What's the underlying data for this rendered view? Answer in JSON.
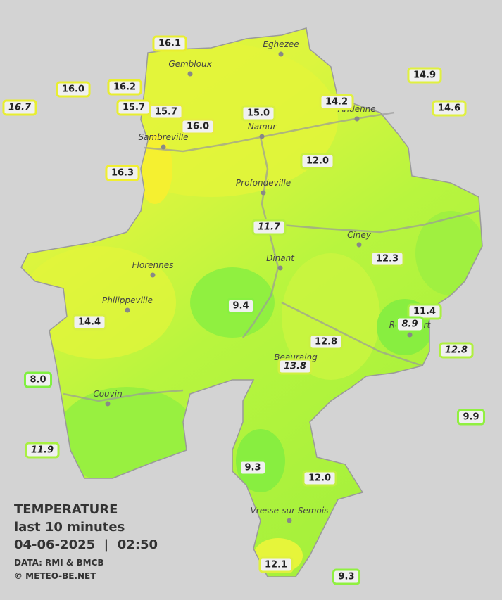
{
  "legend": {
    "title": "TEMPERATURE",
    "subtitle": "last 10 minutes",
    "datetime": "04-06-2025  |  02:50",
    "source": "DATA: RMI & BMCB",
    "copyright": "© METEO-BE.NET"
  },
  "cities": [
    "Eghezee",
    "Gembloux",
    "Andenne",
    "Namur",
    "Sambreville",
    "Profondeville",
    "Ciney",
    "Dinant",
    "Florennes",
    "Philippeville",
    "Rochefort",
    "Beauraing",
    "Couvin",
    "Vresse-sur-Semois"
  ],
  "stations": [
    {
      "label": "16.1",
      "border": "#e8ee30",
      "italic": false
    },
    {
      "label": "16.0",
      "border": "#e8ee30",
      "italic": false
    },
    {
      "label": "16.2",
      "border": "#e8ee30",
      "italic": false
    },
    {
      "label": "16.7",
      "border": "#e8ee30",
      "italic": true
    },
    {
      "label": "15.7",
      "border": "#e8ee30",
      "italic": false
    },
    {
      "label": "15.7",
      "border": "#e6ee40",
      "italic": false
    },
    {
      "label": "16.0",
      "border": "#e6ee40",
      "italic": false
    },
    {
      "label": "15.0",
      "border": "#d8f040",
      "italic": false
    },
    {
      "label": "14.2",
      "border": "#e0f040",
      "italic": false
    },
    {
      "label": "14.9",
      "border": "#e0f040",
      "italic": false
    },
    {
      "label": "14.6",
      "border": "#e0f040",
      "italic": false
    },
    {
      "label": "16.3",
      "border": "#f0ee30",
      "italic": false
    },
    {
      "label": "12.0",
      "border": "#c8f040",
      "italic": false
    },
    {
      "label": "11.7",
      "border": "#b8f040",
      "italic": true
    },
    {
      "label": "12.3",
      "border": "#c0f040",
      "italic": false
    },
    {
      "label": "9.4",
      "border": "#88f040",
      "italic": false
    },
    {
      "label": "11.4",
      "border": "#a8f040",
      "italic": false
    },
    {
      "label": "8.9",
      "border": "#88f040",
      "italic": true
    },
    {
      "label": "14.4",
      "border": "#d8f040",
      "italic": false
    },
    {
      "label": "12.8",
      "border": "#c8f040",
      "italic": false
    },
    {
      "label": "13.8",
      "border": "#d0f040",
      "italic": true
    },
    {
      "label": "12.8",
      "border": "#b0f040",
      "italic": true
    },
    {
      "label": "8.0",
      "border": "#80f040",
      "italic": false
    },
    {
      "label": "9.9",
      "border": "#90f040",
      "italic": false
    },
    {
      "label": "11.9",
      "border": "#a8f040",
      "italic": true
    },
    {
      "label": "9.3",
      "border": "#88f040",
      "italic": false
    },
    {
      "label": "12.0",
      "border": "#c0f040",
      "italic": false
    },
    {
      "label": "12.1",
      "border": "#e0f040",
      "italic": false
    },
    {
      "label": "9.3",
      "border": "#90f040",
      "italic": false
    }
  ]
}
